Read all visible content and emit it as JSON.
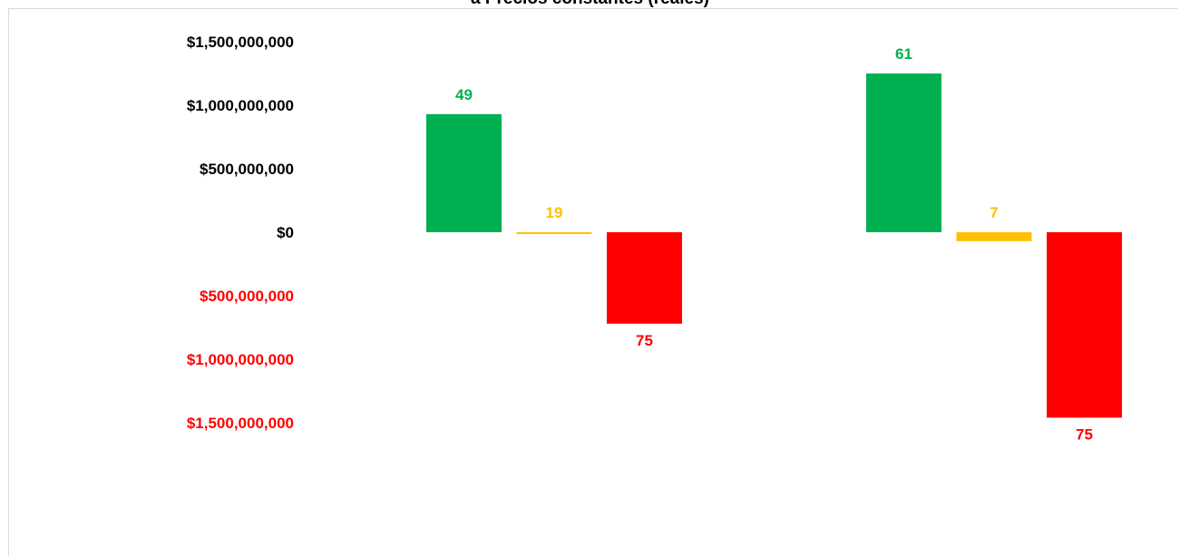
{
  "chart_data": {
    "type": "bar",
    "title": "a Precios constantes (reales)",
    "xlabel": "",
    "ylabel": "",
    "ylim": [
      -1500000000,
      1500000000
    ],
    "yticks": [
      {
        "value": 1500000000,
        "label": "$1,500,000,000"
      },
      {
        "value": 1000000000,
        "label": "$1,000,000,000"
      },
      {
        "value": 500000000,
        "label": "$500,000,000"
      },
      {
        "value": 0,
        "label": "$0"
      },
      {
        "value": -500000000,
        "label": "$500,000,000"
      },
      {
        "value": -1000000000,
        "label": "$1,000,000,000"
      },
      {
        "value": -1500000000,
        "label": "$1,500,000,000"
      }
    ],
    "positive_tick_color": "#000000",
    "negative_tick_color": "#ff0000",
    "groups": [
      {
        "bars": [
          {
            "value": 930000000,
            "label": "49",
            "color": "#00b050"
          },
          {
            "value": -10000000,
            "label": "19",
            "color": "#ffc000"
          },
          {
            "value": -720000000,
            "label": "75",
            "color": "#ff0000"
          }
        ]
      },
      {
        "bars": [
          {
            "value": 1250000000,
            "label": "61",
            "color": "#00b050"
          },
          {
            "value": -70000000,
            "label": "7",
            "color": "#ffc000"
          },
          {
            "value": -1460000000,
            "label": "75",
            "color": "#ff0000"
          }
        ]
      }
    ],
    "grid": false,
    "legend": "none"
  }
}
